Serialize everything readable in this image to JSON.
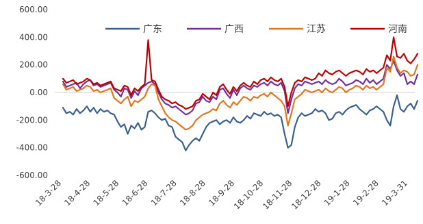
{
  "chart_data": {
    "type": "line",
    "title": "",
    "xlabel": "",
    "ylabel": "",
    "ylim": [
      -600,
      600
    ],
    "yticks": [
      "-600.00",
      "-400.00",
      "-200.00",
      "0.00",
      "200.00",
      "400.00",
      "600.00"
    ],
    "xticks": [
      "18-3-28",
      "18-4-28",
      "18-5-28",
      "18-6-28",
      "18-7-28",
      "18-8-28",
      "18-9-28",
      "18-10-28",
      "18-11-28",
      "18-12-28",
      "19-1-28",
      "19-2-28",
      "19-3-31"
    ],
    "grid": false,
    "zero_line": true,
    "legend_position": "top-right",
    "series": [
      {
        "name": "广东",
        "color": "#3b5f8f",
        "values": [
          -110,
          -150,
          -140,
          -160,
          -120,
          -150,
          -130,
          -100,
          -140,
          -110,
          -150,
          -120,
          -140,
          -130,
          -150,
          -160,
          -210,
          -250,
          -230,
          -300,
          -240,
          -260,
          -220,
          -270,
          -250,
          -140,
          -130,
          -150,
          -180,
          -200,
          -190,
          -240,
          -250,
          -320,
          -340,
          -360,
          -420,
          -380,
          -350,
          -330,
          -350,
          -300,
          -250,
          -220,
          -210,
          -200,
          -230,
          -210,
          -200,
          -220,
          -180,
          -210,
          -220,
          -200,
          -170,
          -190,
          -150,
          -160,
          -170,
          -140,
          -160,
          -150,
          -170,
          -160,
          -180,
          -300,
          -400,
          -380,
          -250,
          -180,
          -150,
          -170,
          -160,
          -150,
          -120,
          -140,
          -130,
          -150,
          -200,
          -190,
          -150,
          -140,
          -160,
          -130,
          -110,
          -100,
          -90,
          -120,
          -140,
          -160,
          -130,
          -120,
          -100,
          -120,
          -140,
          -200,
          -240,
          -100,
          -20,
          -120,
          -140,
          -100,
          -80,
          -120,
          -60
        ]
      },
      {
        "name": "广西",
        "color": "#7030a0",
        "values": [
          80,
          40,
          50,
          60,
          70,
          30,
          60,
          80,
          90,
          50,
          60,
          40,
          50,
          60,
          70,
          20,
          0,
          -30,
          30,
          20,
          -40,
          10,
          -20,
          30,
          50,
          70,
          80,
          60,
          0,
          -50,
          -80,
          -90,
          -110,
          -100,
          -120,
          -140,
          -160,
          -150,
          -130,
          -80,
          -70,
          -30,
          -60,
          -70,
          -30,
          -50,
          20,
          30,
          -10,
          -40,
          20,
          -20,
          30,
          50,
          30,
          20,
          50,
          40,
          60,
          70,
          50,
          80,
          60,
          50,
          70,
          10,
          -150,
          -50,
          30,
          60,
          50,
          80,
          70,
          60,
          70,
          80,
          60,
          90,
          70,
          60,
          70,
          100,
          80,
          50,
          60,
          70,
          90,
          80,
          60,
          100,
          70,
          90,
          60,
          80,
          100,
          200,
          170,
          230,
          160,
          120,
          140,
          60,
          80,
          60,
          130
        ]
      },
      {
        "name": "江苏",
        "color": "#e0771e",
        "values": [
          60,
          20,
          30,
          40,
          10,
          20,
          30,
          50,
          40,
          10,
          20,
          0,
          10,
          20,
          30,
          -40,
          -60,
          -80,
          -50,
          -30,
          -100,
          -60,
          -70,
          -50,
          -30,
          30,
          60,
          50,
          -50,
          -100,
          -150,
          -180,
          -200,
          -210,
          -230,
          -250,
          -270,
          -260,
          -240,
          -200,
          -180,
          -160,
          -150,
          -140,
          -120,
          -130,
          -80,
          -60,
          -90,
          -110,
          -70,
          -90,
          -60,
          -30,
          -40,
          -60,
          -30,
          -40,
          -20,
          -10,
          -30,
          0,
          -20,
          -40,
          -60,
          -100,
          -240,
          -150,
          -50,
          -30,
          -10,
          20,
          10,
          0,
          10,
          20,
          0,
          30,
          10,
          0,
          20,
          40,
          30,
          0,
          20,
          30,
          50,
          40,
          20,
          50,
          30,
          40,
          20,
          40,
          60,
          180,
          150,
          260,
          180,
          140,
          160,
          150,
          120,
          130,
          200
        ]
      },
      {
        "name": "河南",
        "color": "#c00000",
        "values": [
          100,
          70,
          80,
          90,
          60,
          70,
          80,
          100,
          90,
          60,
          70,
          50,
          60,
          70,
          80,
          30,
          20,
          10,
          50,
          40,
          -20,
          30,
          10,
          40,
          60,
          380,
          90,
          80,
          20,
          -30,
          -50,
          -60,
          -80,
          -70,
          -90,
          -100,
          -120,
          -110,
          -100,
          -60,
          -50,
          -10,
          -30,
          -50,
          0,
          -20,
          40,
          60,
          20,
          -10,
          40,
          10,
          50,
          70,
          50,
          40,
          80,
          60,
          90,
          100,
          80,
          110,
          90,
          80,
          100,
          40,
          -100,
          0,
          70,
          90,
          80,
          110,
          100,
          90,
          100,
          140,
          120,
          160,
          140,
          130,
          150,
          160,
          140,
          120,
          140,
          150,
          160,
          150,
          130,
          170,
          150,
          160,
          140,
          160,
          180,
          270,
          230,
          400,
          260,
          250,
          280,
          230,
          210,
          240,
          280
        ]
      }
    ]
  }
}
